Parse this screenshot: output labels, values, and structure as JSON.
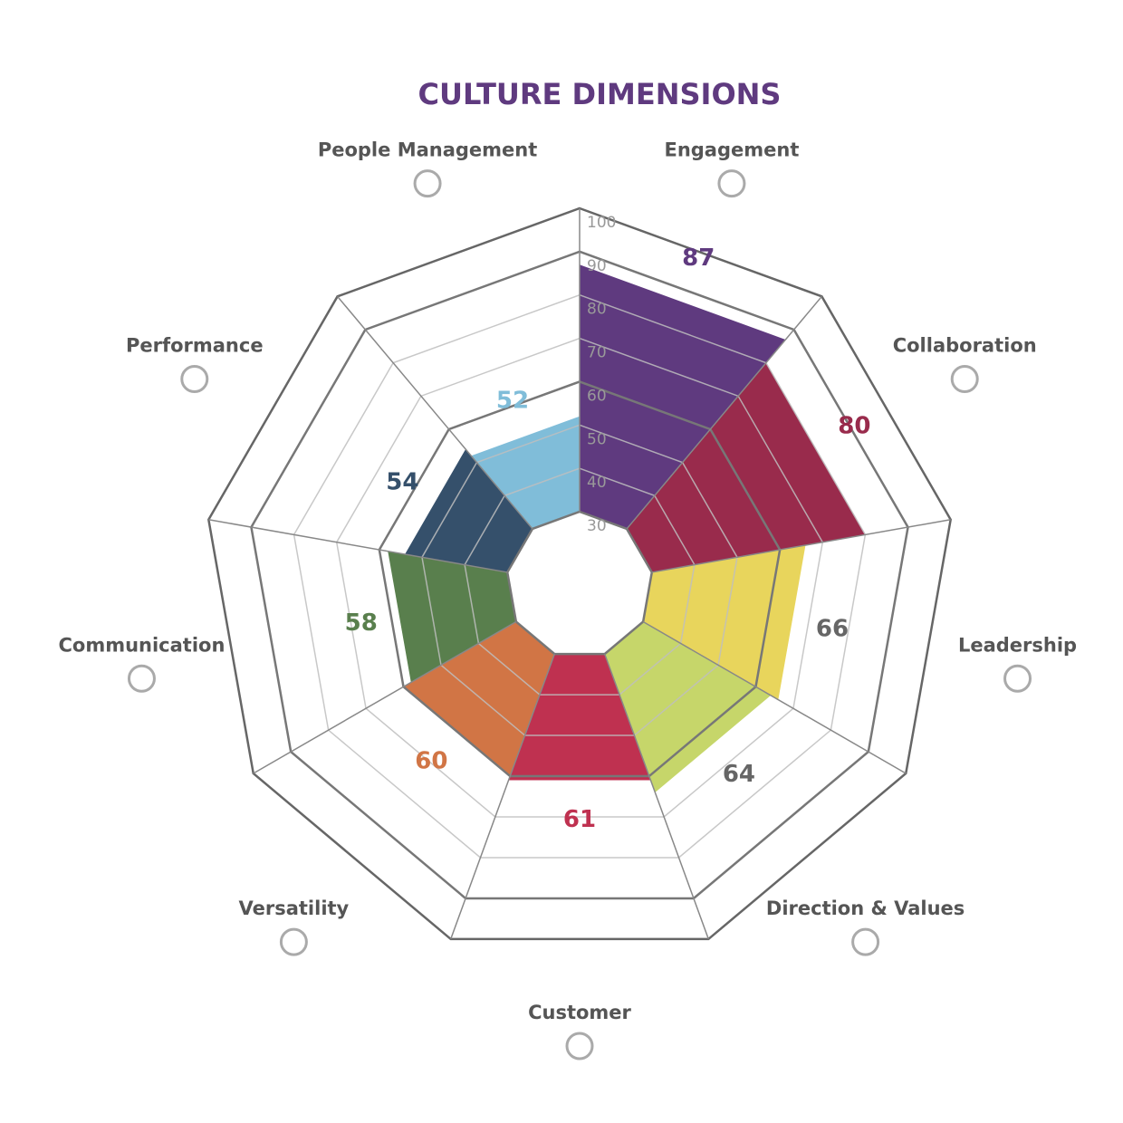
{
  "chart_data": {
    "type": "radial_bar",
    "title": "CULTURE DIMENSIONS",
    "categories": [
      "Engagement",
      "Collaboration",
      "Leadership",
      "Direction & Values",
      "Customer",
      "Versatility",
      "Communication",
      "Performance",
      "People Management"
    ],
    "values": [
      87,
      80,
      66,
      64,
      61,
      60,
      58,
      54,
      52
    ],
    "colors": [
      "#5f3a7f",
      "#992b4c",
      "#e8d55c",
      "#c6d66a",
      "#bf3150",
      "#d17545",
      "#597f4d",
      "#35506b",
      "#80bdd9"
    ],
    "label_colors": [
      "#5f3a7f",
      "#992b4c",
      "#666666",
      "#666666",
      "#bf3150",
      "#d17545",
      "#597f4d",
      "#35506b",
      "#80bdd9"
    ],
    "rlim": [
      30,
      100
    ],
    "rticks": [
      30,
      40,
      50,
      60,
      70,
      80,
      90,
      100
    ]
  }
}
